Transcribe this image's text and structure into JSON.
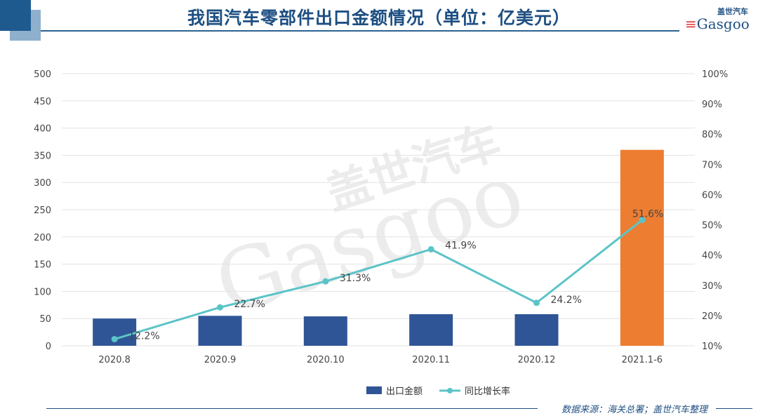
{
  "header": {
    "title": "我国汽车零部件出口金额情况（单位：亿美元）",
    "logo_cn": "盖世汽车",
    "logo_en": "Gasgoo"
  },
  "watermark": {
    "cn": "盖世汽车",
    "en": "Gasgoo"
  },
  "footer": {
    "source": "数据来源：海关总署；盖世汽车整理"
  },
  "colors": {
    "bar": "#2f5597",
    "bar_highlight": "#ed7d31",
    "line": "#5bc4c8"
  },
  "chart_data": {
    "type": "bar",
    "categories": [
      "2020.8",
      "2020.9",
      "2020.10",
      "2020.11",
      "2020.12",
      "2021.1-6"
    ],
    "series": [
      {
        "name": "出口金额",
        "type": "bar",
        "axis": "left",
        "values": [
          50,
          55,
          54,
          58,
          58,
          360
        ]
      },
      {
        "name": "同比增长率",
        "type": "line",
        "axis": "right",
        "values": [
          12.2,
          22.7,
          31.3,
          41.9,
          24.2,
          51.6
        ],
        "labels": [
          "12.2%",
          "22.7%",
          "31.3%",
          "41.9%",
          "24.2%",
          "51.6%"
        ]
      }
    ],
    "ylim": [
      0,
      500
    ],
    "y_ticks": [
      "0",
      "50",
      "100",
      "150",
      "200",
      "250",
      "300",
      "350",
      "400",
      "450",
      "500"
    ],
    "y2lim": [
      10,
      100
    ],
    "y2_ticks": [
      "10%",
      "20%",
      "30%",
      "40%",
      "50%",
      "60%",
      "70%",
      "80%",
      "90%",
      "100%"
    ],
    "grid": true,
    "legend": "bottom"
  }
}
